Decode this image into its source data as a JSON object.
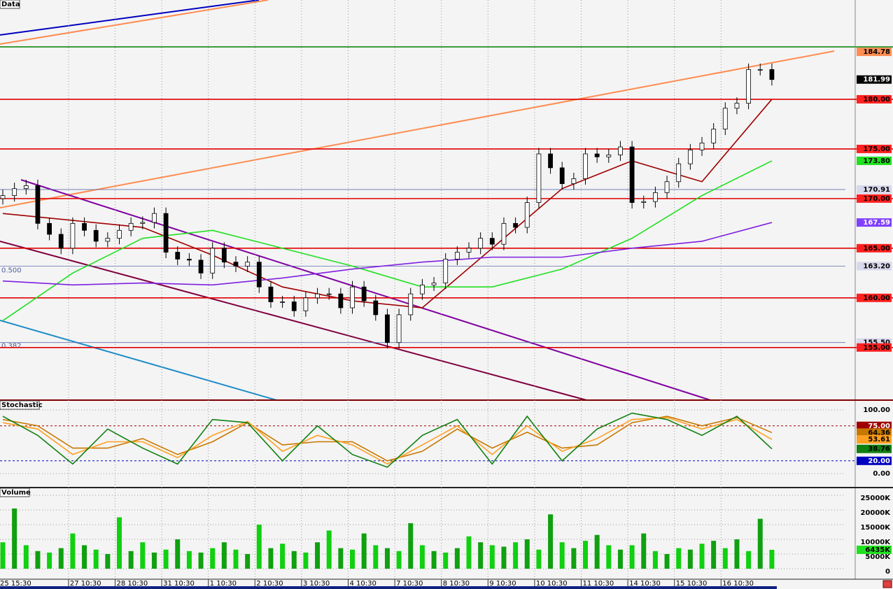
{
  "chart_data": [
    {
      "type": "candlestick",
      "title": "Data",
      "ylim": [
        149.7,
        190
      ],
      "open": [
        170.0,
        170.3,
        171,
        171.3,
        167.5,
        166.4,
        165,
        167.5,
        166.8,
        165.7,
        166,
        166.8,
        167.5,
        167.6,
        168.5,
        164.6,
        163.9,
        163.8,
        162.5,
        165,
        163.6,
        163.2,
        163.6,
        161.1,
        159.6,
        159.6,
        158.7,
        160,
        160.4,
        160.4,
        159,
        161.1,
        159.7,
        158.3,
        155.5,
        158.3,
        160.4,
        161.3,
        161.5,
        163.9,
        164.6,
        165,
        166,
        165.4,
        167.5,
        167.1,
        169.6,
        174.5,
        173.1,
        171.5,
        172,
        174.5,
        174.2,
        174.4,
        175.2,
        169.6,
        169.7,
        170.6,
        171.7,
        173.5,
        174.9,
        175.6,
        177,
        179.1,
        179.6,
        183,
        183
      ],
      "high": [
        170.9,
        171.6,
        171.9,
        171.9,
        168.1,
        167,
        168.1,
        168.1,
        167.4,
        166.6,
        167.4,
        168.1,
        168.2,
        169.1,
        169.1,
        165.2,
        164.5,
        164.4,
        165.6,
        165.6,
        164.2,
        164.2,
        164.2,
        161.7,
        160.2,
        160.2,
        160.6,
        161,
        161,
        161,
        161.7,
        161.7,
        160.3,
        158.9,
        158.9,
        161,
        161.9,
        162.1,
        164.5,
        165.2,
        165.6,
        166.6,
        166.6,
        168.1,
        168.1,
        170.2,
        175.1,
        175.1,
        173.7,
        172.6,
        175.1,
        175.1,
        175,
        175.8,
        175.8,
        170.3,
        171.2,
        172.3,
        174.1,
        175.5,
        176.2,
        177.6,
        179.7,
        180.2,
        183.6,
        183.6,
        183.6
      ],
      "low": [
        169.4,
        169.7,
        170.4,
        166.9,
        165.8,
        164.4,
        164.4,
        166.2,
        165.1,
        165.1,
        165.4,
        166.2,
        166.9,
        167,
        164,
        163.3,
        163.2,
        161.9,
        161.9,
        163,
        162.6,
        162.6,
        160.5,
        159,
        159,
        158.1,
        158.1,
        159.4,
        159.8,
        158.4,
        158.4,
        159.1,
        157.7,
        154.9,
        154.9,
        157.7,
        159.8,
        160.7,
        160.9,
        163.3,
        164,
        164.4,
        164.8,
        164.8,
        166.5,
        166.5,
        169,
        172.5,
        170.9,
        170.9,
        171.4,
        173.6,
        173.6,
        173.8,
        169,
        169,
        169.1,
        170,
        171.1,
        172.9,
        174.3,
        175,
        176.4,
        178.5,
        179,
        182.4,
        181.39
      ],
      "close": [
        170.3,
        171,
        171.3,
        167.5,
        166.4,
        165,
        167.5,
        166.8,
        165.7,
        166,
        166.8,
        167.5,
        167.6,
        168.5,
        164.6,
        163.9,
        163.8,
        162.5,
        165,
        163.6,
        163.2,
        163.6,
        161.1,
        159.6,
        159.6,
        158.7,
        160,
        160.4,
        160.4,
        159,
        161.1,
        159.7,
        158.3,
        155.5,
        158.3,
        160.4,
        161.3,
        161.5,
        163.9,
        164.6,
        165,
        166,
        165.4,
        167.5,
        167.1,
        169.6,
        174.5,
        173.1,
        171.5,
        172,
        174.5,
        174.2,
        174.4,
        175.2,
        169.6,
        169.7,
        170.6,
        171.7,
        173.5,
        174.9,
        175.6,
        177,
        179.1,
        179.6,
        183,
        183,
        181.99
      ],
      "series": [
        {
          "color": "#a00000",
          "x": [
            0,
            6,
            12,
            18,
            24,
            30,
            36,
            42,
            48,
            54,
            60,
            66
          ],
          "values": [
            168.5,
            167.8,
            167.1,
            164.3,
            161.1,
            159.7,
            159,
            165,
            171,
            173.8,
            171.7,
            180
          ]
        },
        {
          "color": "#20e020",
          "x": [
            0,
            6,
            12,
            18,
            24,
            30,
            36,
            42,
            48,
            54,
            60,
            66
          ],
          "values": [
            157.7,
            162.5,
            166,
            166.8,
            165,
            163.2,
            161.1,
            161.1,
            162.9,
            166,
            170.3,
            173.8
          ]
        },
        {
          "color": "#8020e0",
          "x": [
            0,
            6,
            12,
            18,
            24,
            30,
            36,
            42,
            48,
            54,
            60,
            66
          ],
          "values": [
            161.7,
            161.3,
            161.5,
            161.3,
            162,
            162.9,
            163.6,
            164.1,
            164.1,
            165,
            165.7,
            167.59
          ]
        }
      ],
      "levels": [
        {
          "value": 180,
          "label": "180.00",
          "color": "#e00000"
        },
        {
          "value": 175,
          "label": "175.00",
          "color": "#e00000"
        },
        {
          "value": 170.91,
          "label": "170.91",
          "color": "#6070b0"
        },
        {
          "value": 170,
          "label": "170.00",
          "color": "#e00000"
        },
        {
          "value": 165,
          "label": "165.00",
          "color": "#e00000"
        },
        {
          "value": 163.2,
          "label": "163.20",
          "color": "#6070b0",
          "fib": "0.500"
        },
        {
          "value": 160,
          "label": "160.00",
          "color": "#e00000"
        },
        {
          "value": 155.5,
          "label": "155.50",
          "color": "#6070b0",
          "fib": "0.382"
        },
        {
          "value": 155,
          "label": "155.00",
          "color": "#e00000"
        }
      ],
      "markers": [
        {
          "value": 184.78,
          "label": "184.78",
          "color": "#ff8c50"
        },
        {
          "value": 173.8,
          "label": "173.80",
          "color": "#20e020"
        },
        {
          "value": 167.59,
          "label": "167.59",
          "color": "#8040ff"
        }
      ]
    },
    {
      "type": "line",
      "title": "Stochastic",
      "ylim": [
        -22,
        114.3
      ],
      "yticks": [
        {
          "value": 100,
          "label": "100.00"
        },
        {
          "value": 0,
          "label": "0.00"
        }
      ],
      "series": [
        {
          "color": "#c87800",
          "x": [
            0,
            3,
            6,
            9,
            12,
            15,
            18,
            21,
            24,
            27,
            30,
            33,
            36,
            39,
            42,
            45,
            48,
            51,
            54,
            57,
            60,
            63,
            66
          ],
          "values": [
            85,
            75,
            40,
            40,
            55,
            30,
            50,
            80,
            45,
            50,
            50,
            20,
            35,
            70,
            40,
            65,
            40,
            45,
            80,
            90,
            75,
            88,
            64.36
          ]
        },
        {
          "color": "#ffa020",
          "x": [
            0,
            3,
            6,
            9,
            12,
            15,
            18,
            21,
            24,
            27,
            30,
            33,
            36,
            39,
            42,
            45,
            48,
            51,
            54,
            57,
            60,
            63,
            66
          ],
          "values": [
            80,
            70,
            30,
            50,
            50,
            25,
            60,
            82,
            35,
            60,
            45,
            15,
            45,
            75,
            30,
            75,
            35,
            55,
            85,
            88,
            70,
            85,
            53.61
          ]
        },
        {
          "color": "#108010",
          "x": [
            0,
            3,
            6,
            9,
            12,
            15,
            18,
            21,
            24,
            27,
            30,
            33,
            36,
            39,
            42,
            45,
            48,
            51,
            54,
            57,
            60,
            63,
            66
          ],
          "values": [
            90,
            60,
            15,
            70,
            40,
            15,
            85,
            80,
            20,
            75,
            30,
            10,
            60,
            85,
            15,
            90,
            20,
            70,
            95,
            85,
            60,
            90,
            38.76
          ]
        }
      ],
      "levels": [
        {
          "value": 75,
          "label": "75.00",
          "color": "#a00000"
        },
        {
          "value": 20,
          "label": "20.00",
          "color": "#0000c0"
        }
      ]
    },
    {
      "type": "bar",
      "title": "Volume",
      "ylim": [
        -3571,
        27381
      ],
      "yticks": [
        {
          "value": 25000,
          "label": "25000K"
        },
        {
          "value": 20000,
          "label": "20000K"
        },
        {
          "value": 15000,
          "label": "15000K"
        },
        {
          "value": 10000,
          "label": "10000K"
        },
        {
          "value": 5000,
          "label": "5000K"
        },
        0
      ],
      "color": "#10d010",
      "categories": [
        "25 15:30",
        null,
        null,
        null,
        null,
        null,
        "27 10:30",
        null,
        null,
        null,
        "28 10:30",
        null,
        null,
        null,
        "31 10:30",
        null,
        null,
        null,
        "1 10:30",
        null,
        null,
        null,
        "2 10:30",
        null,
        null,
        null,
        "3 10:30",
        null,
        null,
        null,
        "4 10:30",
        null,
        null,
        null,
        "7 10:30",
        null,
        null,
        null,
        "8 10:30",
        null,
        null,
        null,
        "9 10:30",
        null,
        null,
        null,
        "10 10:30",
        null,
        null,
        null,
        "11 10:30",
        null,
        null,
        null,
        "14 10:30",
        null,
        null,
        null,
        "15 10:30",
        null,
        null,
        null,
        "16 10:30",
        null,
        null,
        null,
        null
      ],
      "values": [
        9000,
        20500,
        8000,
        6000,
        5500,
        7000,
        12000,
        8000,
        6500,
        5000,
        17500,
        6000,
        9000,
        5500,
        6500,
        10000,
        6000,
        5500,
        7000,
        9000,
        6500,
        5000,
        15000,
        7000,
        8500,
        6000,
        5500,
        9000,
        13000,
        7000,
        6500,
        12000,
        8000,
        7000,
        6000,
        15500,
        8000,
        6000,
        5500,
        7000,
        11000,
        9000,
        8000,
        7500,
        9000,
        10000,
        6500,
        18500,
        9000,
        7000,
        9500,
        11500,
        8000,
        6500,
        8000,
        12000,
        6000,
        5000,
        7000,
        6500,
        8500,
        9500,
        7000,
        10000,
        6000,
        17000,
        6435
      ],
      "last_label": "6435K"
    }
  ]
}
